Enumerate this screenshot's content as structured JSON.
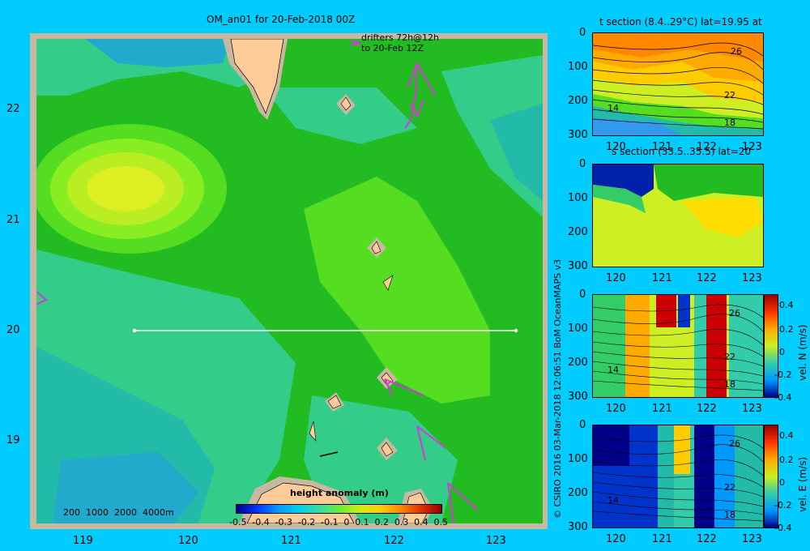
{
  "title": "OM_an01 for 20-Feb-2018 00Z",
  "drifter_note": {
    "line1": "drifters 72h@12h",
    "line2": "to 20-Feb 12Z"
  },
  "map": {
    "lat_ticks": [
      "22",
      "21",
      "20",
      "19"
    ],
    "lon_ticks": [
      "119",
      "120",
      "121",
      "122",
      "123"
    ],
    "bathymetry_contours": "200  1000  2000  4000m",
    "section_line": {
      "lat": 20,
      "lon_start": 119.5,
      "lon_end": 123.2
    },
    "colorbar": {
      "title": "height anomaly (m)",
      "labels": [
        "-0.5",
        "-0.4",
        "-0.3",
        "-0.2",
        "-0.1",
        "0",
        "0.1",
        "0.2",
        "0.3",
        "0.4",
        "0.5"
      ]
    },
    "colors": {
      "ocean_main": "#22bb22",
      "land": "#ffcc99",
      "drifter": "#dd33dd",
      "background": "#00ccff"
    }
  },
  "side_panels": [
    {
      "title": "t section (8.4..29°C) lat=19.95 at",
      "contour_labels": [
        "26",
        "22",
        "18",
        "14"
      ]
    },
    {
      "title": "s section (33.5..35.5) lat=20",
      "contour_labels": []
    },
    {
      "title": "",
      "colorbar_label": "vel. N (m/s)",
      "colorbar_ticks": [
        "0.4",
        "0.2",
        "0",
        "-0.2",
        "-0.4"
      ],
      "contour_labels": [
        "26",
        "22",
        "18",
        "14"
      ]
    },
    {
      "title": "",
      "colorbar_label": "vel. E (m/s)",
      "colorbar_ticks": [
        "0.4",
        "0.2",
        "0",
        "-0.2",
        "-0.4"
      ],
      "contour_labels": [
        "26",
        "22",
        "18",
        "14"
      ]
    }
  ],
  "panel_axes": {
    "depth_ticks": [
      "0",
      "100",
      "200",
      "300"
    ],
    "lon_ticks": [
      "120",
      "121",
      "122",
      "123"
    ]
  },
  "credit": "© CSIRO 2016   03-Mar-2018 12:06:51 BoM OceanMAPS v3"
}
